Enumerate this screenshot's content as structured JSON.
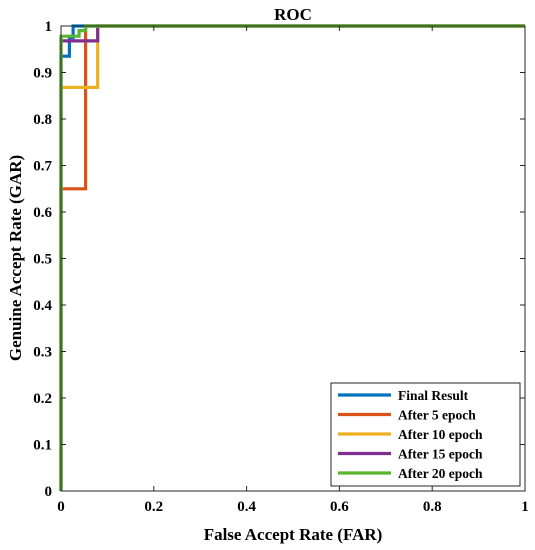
{
  "chart_data": {
    "type": "line",
    "title": "ROC",
    "xlabel": "False Accept Rate (FAR)",
    "ylabel": "Genuine Accept Rate (GAR)",
    "xlim": [
      0,
      1
    ],
    "ylim": [
      0,
      1
    ],
    "xticks": [
      0,
      0.2,
      0.4,
      0.6,
      0.8,
      1
    ],
    "xtick_labels": [
      "0",
      "0.2",
      "0.4",
      "0.6",
      "0.8",
      "1"
    ],
    "yticks": [
      0,
      0.1,
      0.2,
      0.3,
      0.4,
      0.5,
      0.6,
      0.7,
      0.8,
      0.9,
      1
    ],
    "ytick_labels": [
      "0",
      "0.1",
      "0.2",
      "0.3",
      "0.4",
      "0.5",
      "0.6",
      "0.7",
      "0.8",
      "0.9",
      "1"
    ],
    "grid": false,
    "legend_position": "bottom-right",
    "series": [
      {
        "name": "Final Result",
        "color": "#0072BD",
        "x": [
          0,
          0,
          0.018,
          0.018,
          0.026,
          0.026,
          1
        ],
        "y": [
          0,
          0.935,
          0.935,
          0.975,
          0.975,
          1,
          1
        ]
      },
      {
        "name": "After 5 epoch",
        "color": "#D95319",
        "x": [
          0,
          0,
          0.053,
          0.053,
          1
        ],
        "y": [
          0,
          0.65,
          0.65,
          1,
          1
        ]
      },
      {
        "name": "After 10 epoch",
        "color": "#EDB120",
        "x": [
          0,
          0,
          0.079,
          0.079,
          1
        ],
        "y": [
          0,
          0.868,
          0.868,
          1,
          1
        ]
      },
      {
        "name": "After 15 epoch",
        "color": "#7E2F8E",
        "x": [
          0,
          0,
          0.079,
          0.079,
          1
        ],
        "y": [
          0,
          0.968,
          0.968,
          1,
          1
        ]
      },
      {
        "name": "After 20 epoch",
        "color": "#5CB531",
        "x": [
          0,
          0,
          0.039,
          0.039,
          0.053,
          0.053,
          1
        ],
        "y": [
          0,
          0.978,
          0.978,
          0.99,
          0.99,
          1,
          1
        ]
      }
    ]
  }
}
